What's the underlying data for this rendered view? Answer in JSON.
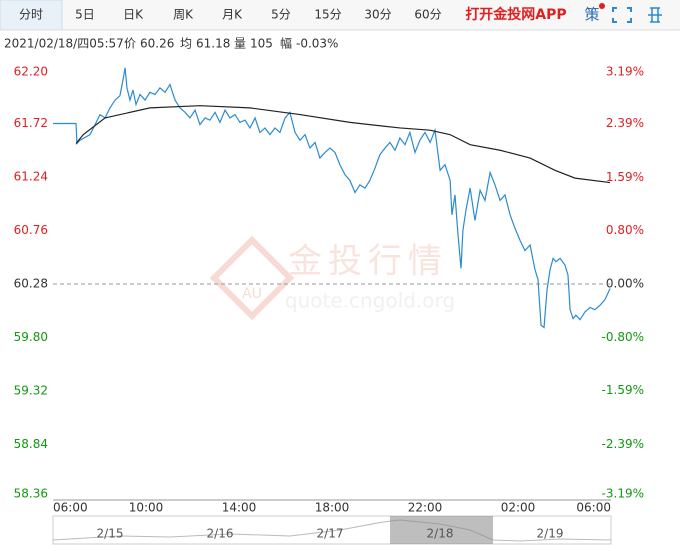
{
  "toolbar": {
    "tabs": [
      "分时",
      "5日",
      "日K",
      "周K",
      "月K",
      "5分",
      "15分",
      "30分",
      "60分"
    ],
    "app": "打开金投网APP",
    "strategy": "策"
  },
  "info": {
    "datetime": "2021/02/18/四05:57",
    "price_label": "价",
    "price": "60.26",
    "avg_label": "均",
    "avg": "61.18",
    "vol_label": "量",
    "vol": "105",
    "chg_label": "幅",
    "chg": "-0.03%"
  },
  "watermark": {
    "brand": "金投行情",
    "url": "quote.cngold.org",
    "logo": "AU"
  },
  "chart_data": {
    "type": "line",
    "xlim": [
      0,
      24
    ],
    "xticks": [
      {
        "value": 0,
        "label": "06:00"
      },
      {
        "value": 4,
        "label": "10:00"
      },
      {
        "value": 8,
        "label": "14:00"
      },
      {
        "value": 12,
        "label": "18:00"
      },
      {
        "value": 16,
        "label": "22:00"
      },
      {
        "value": 20,
        "label": "02:00"
      },
      {
        "value": 24,
        "label": "06:00"
      }
    ],
    "ylim": [
      58.36,
      62.2
    ],
    "yticks": [
      {
        "value": 62.2,
        "label": "62.20"
      },
      61.72,
      61.24,
      60.76,
      60.28,
      {
        "value": 59.8,
        "label": "59.80"
      },
      59.32,
      58.84,
      58.36
    ],
    "y2lim": [
      -3.19,
      3.19
    ],
    "y2ticks": [
      {
        "value": 3.19,
        "label": "3.19%"
      },
      {
        "value": 2.39,
        "label": "2.39%"
      },
      {
        "value": 1.59,
        "label": "1.59%"
      },
      {
        "value": 0.8,
        "label": "0.80%"
      },
      {
        "value": 0,
        "label": "0.00%"
      },
      {
        "value": -0.8,
        "label": "-0.80%"
      },
      {
        "value": -1.59,
        "label": "-1.59%"
      },
      {
        "value": -2.39,
        "label": "-2.39%"
      },
      {
        "value": -3.19,
        "label": "-3.19%"
      }
    ],
    "grid": false,
    "up_color": "#e02020",
    "down_color": "#119911",
    "flat_color": "#333333",
    "series": [
      {
        "color": "#2b8bd0",
        "x": [
          0,
          0.99,
          1.03,
          1.16,
          1.59,
          1.81,
          2.02,
          2.24,
          2.45,
          2.67,
          2.88,
          3.01,
          3.1,
          3.18,
          3.31,
          3.44,
          3.57,
          3.74,
          3.96,
          4.17,
          4.39,
          4.6,
          4.82,
          5.03,
          5.25,
          5.46,
          5.68,
          5.89,
          6.11,
          6.32,
          6.54,
          6.75,
          6.97,
          7.18,
          7.4,
          7.61,
          7.83,
          8.04,
          8.26,
          8.47,
          8.69,
          8.9,
          9.12,
          9.33,
          9.55,
          9.76,
          9.98,
          10.19,
          10.41,
          10.62,
          10.84,
          11.05,
          11.27,
          11.48,
          11.7,
          11.91,
          12.13,
          12.34,
          12.56,
          12.77,
          12.99,
          13.2,
          13.42,
          13.63,
          13.85,
          14.06,
          14.28,
          14.49,
          14.71,
          14.92,
          15.14,
          15.35,
          15.57,
          15.78,
          16,
          16.22,
          16.43,
          16.65,
          16.86,
          17.08,
          17.16,
          17.29,
          17.42,
          17.55,
          17.63,
          17.76,
          17.94,
          18.15,
          18.37,
          18.58,
          18.8,
          19.01,
          19.23,
          19.44,
          19.66,
          19.87,
          20.09,
          20.3,
          20.52,
          20.73,
          20.86,
          20.99,
          21.12,
          21.25,
          21.38,
          21.51,
          21.63,
          21.81,
          22.02,
          22.15,
          22.24,
          22.37,
          22.49,
          22.67,
          22.88,
          23.1,
          23.31,
          23.53,
          23.74,
          23.96
        ],
        "values": [
          61.72,
          61.72,
          61.54,
          61.57,
          61.62,
          61.71,
          61.8,
          61.77,
          61.86,
          61.93,
          61.97,
          62.11,
          62.22,
          62.04,
          61.93,
          62.02,
          61.89,
          61.98,
          61.93,
          62,
          61.98,
          62.04,
          62,
          62.07,
          61.93,
          61.86,
          61.82,
          61.77,
          61.84,
          61.71,
          61.77,
          61.75,
          61.82,
          61.73,
          61.84,
          61.77,
          61.8,
          61.73,
          61.75,
          61.68,
          61.77,
          61.64,
          61.68,
          61.62,
          61.68,
          61.64,
          61.77,
          61.82,
          61.64,
          61.57,
          61.62,
          61.5,
          61.55,
          61.41,
          61.46,
          61.5,
          61.46,
          61.35,
          61.26,
          61.21,
          61.1,
          61.17,
          61.14,
          61.21,
          61.32,
          61.44,
          61.5,
          61.55,
          61.48,
          61.59,
          61.53,
          61.64,
          61.46,
          61.57,
          61.64,
          61.55,
          61.66,
          61.3,
          61.35,
          61.21,
          60.9,
          61.08,
          60.72,
          60.42,
          60.76,
          60.94,
          61.14,
          60.85,
          61.12,
          61.03,
          61.28,
          61.17,
          61.03,
          61.08,
          60.9,
          60.78,
          60.67,
          60.58,
          60.63,
          60.41,
          60.32,
          59.91,
          59.89,
          60.23,
          60.41,
          60.51,
          60.48,
          60.51,
          60.45,
          60.36,
          60.05,
          59.97,
          60,
          59.96,
          60.03,
          60.07,
          60.05,
          60.09,
          60.14,
          60.24
        ]
      },
      {
        "color": "#222222",
        "x": [
          0.99,
          1.3,
          2.24,
          4.17,
          6.32,
          8.47,
          10.62,
          12.77,
          14.92,
          16.22,
          17.08,
          17.94,
          19.23,
          20.52,
          21.59,
          22.45,
          23.96
        ],
        "values": [
          61.54,
          61.62,
          61.77,
          61.86,
          61.88,
          61.86,
          61.8,
          61.73,
          61.68,
          61.66,
          61.62,
          61.53,
          61.48,
          61.41,
          61.3,
          61.23,
          61.19
        ]
      }
    ]
  },
  "navigator": {
    "labels": [
      "2/15",
      "2/16",
      "2/17",
      "2/18",
      "2/19"
    ]
  }
}
